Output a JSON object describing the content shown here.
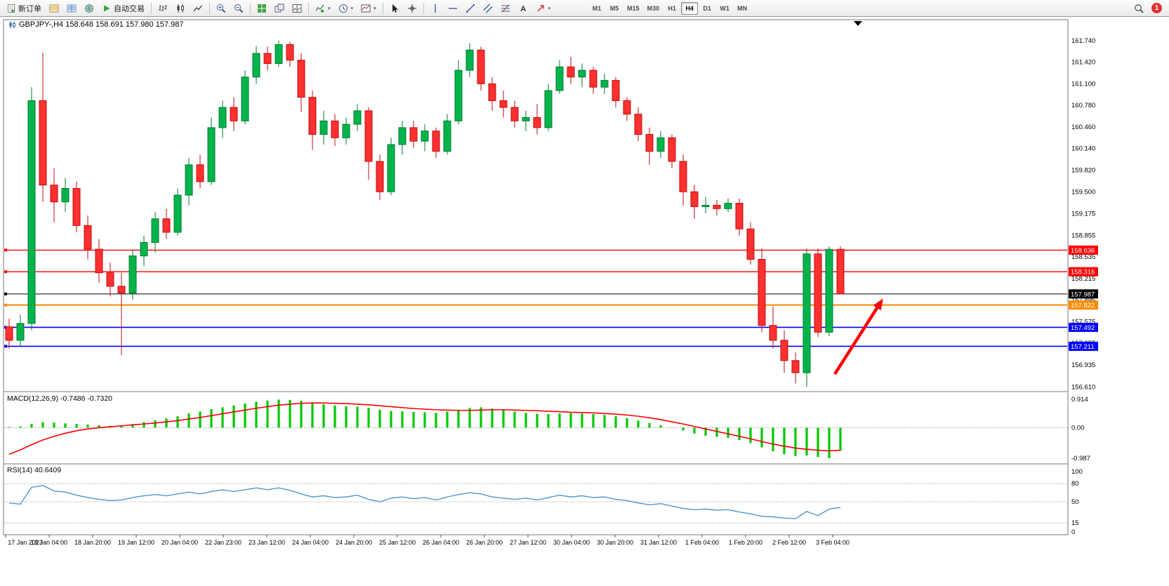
{
  "toolbar": {
    "new_order_label": "新订单",
    "auto_trading_label": "自动交易",
    "timeframes": [
      "M1",
      "M5",
      "M15",
      "M30",
      "H1",
      "H4",
      "D1",
      "W1",
      "MN"
    ],
    "active_timeframe": "H4",
    "notification_count": "1"
  },
  "chart": {
    "title": "GBPJPY-,H4  158.648 158.691 157.980 157.987",
    "macd_label": "MACD(12,26,9) -0.7486 -0.7320",
    "rsi_label": "RSI(14) 40.6409"
  },
  "chart_data": [
    {
      "type": "candlestick",
      "symbol": "GBPJPY-",
      "period": "H4",
      "ohlc_current": {
        "open": 158.648,
        "high": 158.691,
        "low": 157.98,
        "close": 157.987
      },
      "ylim": [
        156.54,
        162.05
      ],
      "up_color": "#00b44b",
      "up_stroke": "#007a30",
      "down_color": "#ff3030",
      "down_stroke": "#bf0d0d",
      "price_axis": [
        161.74,
        161.42,
        161.1,
        160.78,
        160.46,
        160.14,
        159.82,
        159.5,
        159.175,
        158.855,
        158.535,
        158.215,
        157.895,
        157.575,
        157.255,
        156.935,
        156.61
      ],
      "hlines": [
        {
          "price": 158.636,
          "label": "158.636",
          "color": "#ff0000",
          "width": 1.4
        },
        {
          "price": 158.316,
          "label": "158.316",
          "color": "#ff0000",
          "width": 1.4
        },
        {
          "price": 157.987,
          "label": "157.987",
          "color": "#000000",
          "width": 1
        },
        {
          "price": 157.822,
          "label": "157.822",
          "color": "#ff8a00",
          "width": 2
        },
        {
          "price": 157.492,
          "label": "157.492",
          "color": "#0000ff",
          "width": 1.6
        },
        {
          "price": 157.211,
          "label": "157.211",
          "color": "#0000ff",
          "width": 1.6
        }
      ],
      "time_labels": [
        "17 Jan 2023",
        "18 Jan 04:00",
        "18 Jan 20:00",
        "19 Jan 12:00",
        "20 Jan 04:00",
        "22 Jan 23:00",
        "23 Jan 12:00",
        "24 Jan 04:00",
        "24 Jan 20:00",
        "25 Jan 12:00",
        "26 Jan 04:00",
        "26 Jan 20:00",
        "27 Jan 12:00",
        "30 Jan 04:00",
        "30 Jan 20:00",
        "31 Jan 12:00",
        "1 Feb 04:00",
        "1 Feb 20:00",
        "2 Feb 12:00",
        "3 Feb 04:00"
      ],
      "arrow": {
        "from_bar": 73.5,
        "from_price": 156.8,
        "to_bar": 77.8,
        "to_price": 157.92,
        "color": "#ff0000"
      },
      "candles": [
        [
          157.5,
          157.62,
          157.18,
          157.3
        ],
        [
          157.3,
          157.68,
          157.22,
          157.55
        ],
        [
          157.55,
          161.05,
          157.45,
          160.85
        ],
        [
          160.85,
          161.56,
          159.35,
          159.6
        ],
        [
          159.6,
          159.85,
          159.05,
          159.35
        ],
        [
          159.35,
          159.7,
          159.2,
          159.55
        ],
        [
          159.55,
          159.65,
          158.9,
          159.0
        ],
        [
          159.0,
          159.15,
          158.5,
          158.65
        ],
        [
          158.65,
          158.8,
          158.15,
          158.3
        ],
        [
          158.3,
          158.45,
          157.95,
          158.1
        ],
        [
          158.1,
          158.3,
          157.08,
          158.0
        ],
        [
          158.0,
          158.65,
          157.9,
          158.55
        ],
        [
          158.55,
          158.85,
          158.4,
          158.75
        ],
        [
          158.75,
          159.2,
          158.6,
          159.1
        ],
        [
          159.1,
          159.25,
          158.8,
          158.9
        ],
        [
          158.9,
          159.55,
          158.85,
          159.45
        ],
        [
          159.45,
          160.0,
          159.3,
          159.9
        ],
        [
          159.9,
          160.05,
          159.55,
          159.65
        ],
        [
          159.65,
          160.6,
          159.6,
          160.45
        ],
        [
          160.45,
          160.85,
          160.3,
          160.75
        ],
        [
          160.75,
          160.9,
          160.4,
          160.55
        ],
        [
          160.55,
          161.3,
          160.5,
          161.2
        ],
        [
          161.2,
          161.66,
          161.1,
          161.55
        ],
        [
          161.55,
          161.65,
          161.3,
          161.4
        ],
        [
          161.4,
          161.74,
          161.35,
          161.68
        ],
        [
          161.68,
          161.72,
          161.35,
          161.45
        ],
        [
          161.45,
          161.55,
          160.68,
          160.9
        ],
        [
          160.9,
          161.0,
          160.12,
          160.35
        ],
        [
          160.35,
          160.7,
          160.2,
          160.55
        ],
        [
          160.55,
          160.65,
          160.18,
          160.3
        ],
        [
          160.3,
          160.6,
          160.2,
          160.5
        ],
        [
          160.5,
          160.8,
          160.4,
          160.7
        ],
        [
          160.7,
          160.75,
          159.68,
          159.95
        ],
        [
          159.95,
          160.05,
          159.38,
          159.5
        ],
        [
          159.5,
          160.3,
          159.45,
          160.2
        ],
        [
          160.2,
          160.55,
          160.05,
          160.45
        ],
        [
          160.45,
          160.55,
          160.15,
          160.25
        ],
        [
          160.25,
          160.5,
          160.1,
          160.4
        ],
        [
          160.4,
          160.45,
          160.0,
          160.1
        ],
        [
          160.1,
          160.65,
          160.05,
          160.55
        ],
        [
          160.55,
          161.45,
          160.5,
          161.3
        ],
        [
          161.3,
          161.7,
          161.2,
          161.6
        ],
        [
          161.6,
          161.65,
          161.0,
          161.1
        ],
        [
          161.1,
          161.2,
          160.7,
          160.85
        ],
        [
          160.85,
          161.0,
          160.6,
          160.75
        ],
        [
          160.75,
          160.85,
          160.45,
          160.55
        ],
        [
          160.55,
          160.7,
          160.4,
          160.6
        ],
        [
          160.6,
          160.8,
          160.35,
          160.45
        ],
        [
          160.45,
          161.1,
          160.4,
          161.0
        ],
        [
          161.0,
          161.45,
          160.95,
          161.35
        ],
        [
          161.35,
          161.5,
          161.1,
          161.2
        ],
        [
          161.2,
          161.4,
          161.05,
          161.3
        ],
        [
          161.3,
          161.35,
          160.95,
          161.05
        ],
        [
          161.05,
          161.25,
          160.95,
          161.15
        ],
        [
          161.15,
          161.2,
          160.75,
          160.85
        ],
        [
          160.85,
          160.9,
          160.55,
          160.65
        ],
        [
          160.65,
          160.75,
          160.25,
          160.35
        ],
        [
          160.35,
          160.45,
          159.9,
          160.1
        ],
        [
          160.1,
          160.4,
          160.0,
          160.3
        ],
        [
          160.3,
          160.35,
          159.85,
          159.95
        ],
        [
          159.95,
          160.05,
          159.3,
          159.5
        ],
        [
          159.5,
          159.6,
          159.1,
          159.28
        ],
        [
          159.28,
          159.42,
          159.18,
          159.3
        ],
        [
          159.3,
          159.38,
          159.15,
          159.25
        ],
        [
          159.25,
          159.4,
          159.2,
          159.33
        ],
        [
          159.33,
          159.4,
          158.85,
          158.95
        ],
        [
          158.95,
          159.05,
          158.42,
          158.5
        ],
        [
          158.5,
          158.66,
          157.42,
          157.52
        ],
        [
          157.52,
          157.8,
          157.18,
          157.3
        ],
        [
          157.3,
          157.45,
          156.82,
          157.0
        ],
        [
          157.0,
          157.12,
          156.66,
          156.82
        ],
        [
          156.82,
          158.66,
          156.61,
          158.58
        ],
        [
          158.58,
          158.66,
          157.35,
          157.42
        ],
        [
          157.42,
          158.69,
          157.36,
          158.648
        ],
        [
          158.648,
          158.691,
          157.98,
          157.987
        ]
      ]
    },
    {
      "type": "bar",
      "name": "MACD(12,26,9)",
      "main_value": -0.7486,
      "signal_value": -0.732,
      "axis": [
        0.914,
        0,
        -0.987
      ],
      "ylim": [
        -1.15,
        1.1
      ],
      "bar_color": "#00c800",
      "signal_color": "#ff0000",
      "histogram": [
        0.02,
        0.04,
        0.12,
        0.18,
        0.16,
        0.14,
        0.12,
        0.1,
        0.08,
        0.06,
        0.08,
        0.12,
        0.18,
        0.24,
        0.3,
        0.37,
        0.46,
        0.52,
        0.6,
        0.66,
        0.72,
        0.78,
        0.84,
        0.88,
        0.91,
        0.9,
        0.87,
        0.82,
        0.76,
        0.72,
        0.69,
        0.68,
        0.64,
        0.58,
        0.54,
        0.53,
        0.51,
        0.5,
        0.48,
        0.52,
        0.58,
        0.64,
        0.66,
        0.62,
        0.57,
        0.52,
        0.48,
        0.45,
        0.44,
        0.46,
        0.47,
        0.46,
        0.44,
        0.41,
        0.37,
        0.31,
        0.23,
        0.15,
        0.08,
        0.01,
        -0.09,
        -0.19,
        -0.26,
        -0.3,
        -0.33,
        -0.4,
        -0.5,
        -0.64,
        -0.76,
        -0.86,
        -0.92,
        -0.9,
        -0.95,
        -0.987,
        -0.7486
      ],
      "signal": [
        -0.86,
        -0.72,
        -0.55,
        -0.4,
        -0.28,
        -0.18,
        -0.1,
        -0.04,
        0.0,
        0.03,
        0.06,
        0.09,
        0.12,
        0.15,
        0.19,
        0.23,
        0.28,
        0.33,
        0.39,
        0.45,
        0.51,
        0.57,
        0.63,
        0.68,
        0.73,
        0.76,
        0.79,
        0.8,
        0.8,
        0.79,
        0.78,
        0.76,
        0.74,
        0.71,
        0.68,
        0.65,
        0.62,
        0.6,
        0.58,
        0.57,
        0.56,
        0.56,
        0.57,
        0.58,
        0.58,
        0.57,
        0.56,
        0.55,
        0.53,
        0.52,
        0.5,
        0.49,
        0.48,
        0.46,
        0.44,
        0.41,
        0.37,
        0.32,
        0.26,
        0.19,
        0.12,
        0.04,
        -0.04,
        -0.12,
        -0.2,
        -0.28,
        -0.36,
        -0.45,
        -0.53,
        -0.6,
        -0.66,
        -0.7,
        -0.73,
        -0.75,
        -0.732
      ]
    },
    {
      "type": "line",
      "name": "RSI(14)",
      "value": 40.6409,
      "axis": [
        100,
        80,
        50,
        15,
        0
      ],
      "levels": [
        80,
        50,
        15
      ],
      "ylim": [
        0,
        100
      ],
      "line_color": "#4d96d2",
      "values": [
        48,
        46,
        74,
        77,
        68,
        66,
        61,
        57,
        54,
        52,
        53,
        57,
        60,
        62,
        60,
        63,
        66,
        63,
        67,
        70,
        67,
        70,
        73,
        70,
        73,
        69,
        63,
        58,
        60,
        57,
        58,
        61,
        54,
        50,
        56,
        58,
        55,
        57,
        53,
        58,
        62,
        65,
        63,
        58,
        56,
        54,
        56,
        53,
        57,
        61,
        58,
        60,
        57,
        58,
        54,
        52,
        48,
        45,
        47,
        43,
        39,
        37,
        38,
        36,
        37,
        33,
        30,
        26,
        25,
        23,
        22,
        34,
        27,
        38,
        40.64
      ]
    }
  ]
}
